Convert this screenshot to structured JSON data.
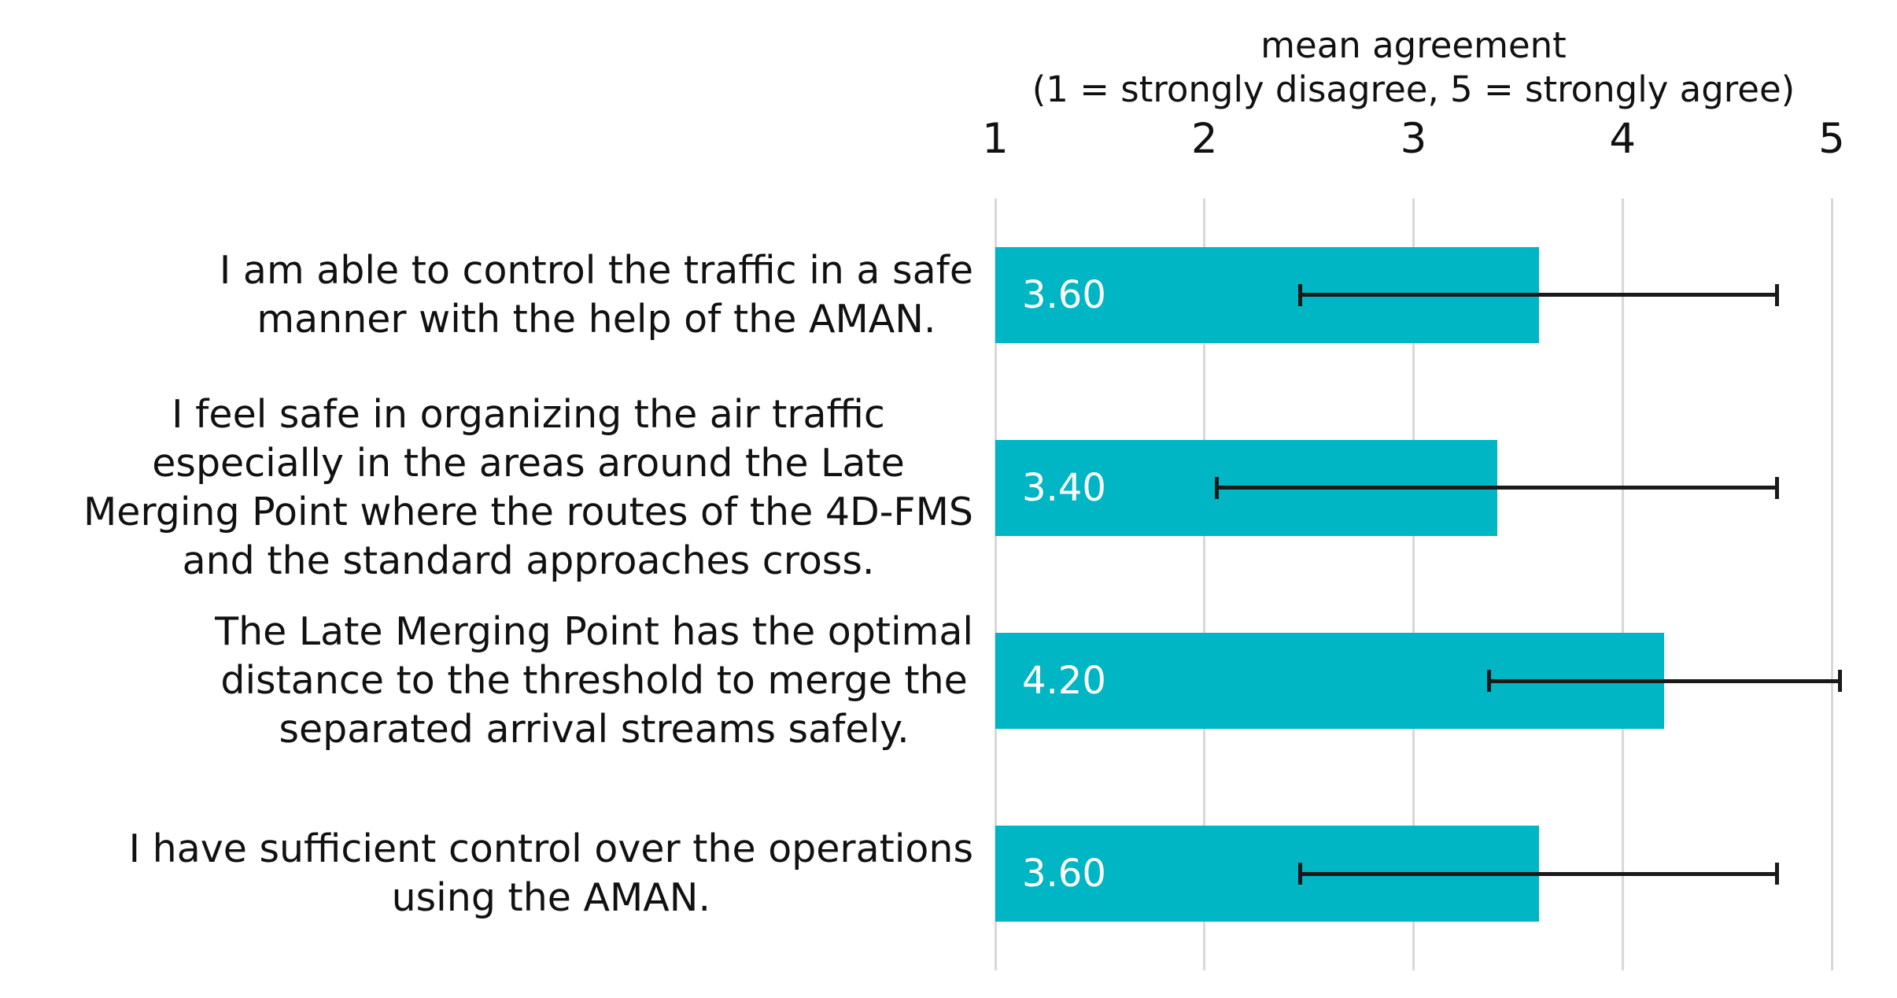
{
  "chart_data": {
    "type": "bar",
    "orientation": "horizontal",
    "title": "mean agreement",
    "subtitle": "(1 = strongly disagree, 5 = strongly agree)",
    "xlim": [
      1,
      5
    ],
    "x_ticks": [
      "1",
      "2",
      "3",
      "4",
      "5"
    ],
    "grid": true,
    "legend": "none",
    "categories": [
      "I am able to control the traffic in a safe\nmanner with the help of the AMAN.",
      "I feel safe in organizing the air traffic\nespecially in the areas around the Late\nMerging Point where the routes of the 4D-FMS\nand the standard approaches cross.",
      "The Late Merging Point has the optimal\ndistance to the threshold to merge the\nseparated arrival streams safely.",
      "I have sufficient control over the operations\nusing the AMAN."
    ],
    "values": [
      3.6,
      3.4,
      4.2,
      3.6
    ],
    "value_labels": [
      "3.60",
      "3.40",
      "4.20",
      "3.60"
    ],
    "error": [
      1.14,
      1.34,
      0.84,
      1.14
    ],
    "error_low": [
      2.46,
      2.06,
      3.36,
      2.46
    ],
    "error_high": [
      4.74,
      4.74,
      5.04,
      4.74
    ],
    "colors": {
      "bar": "#00b5c4",
      "gridline": "#d8d8d8",
      "error_bar": "#1a1a1a",
      "value_label": "#ffffff",
      "text": "#111111",
      "background": "#ffffff"
    }
  }
}
